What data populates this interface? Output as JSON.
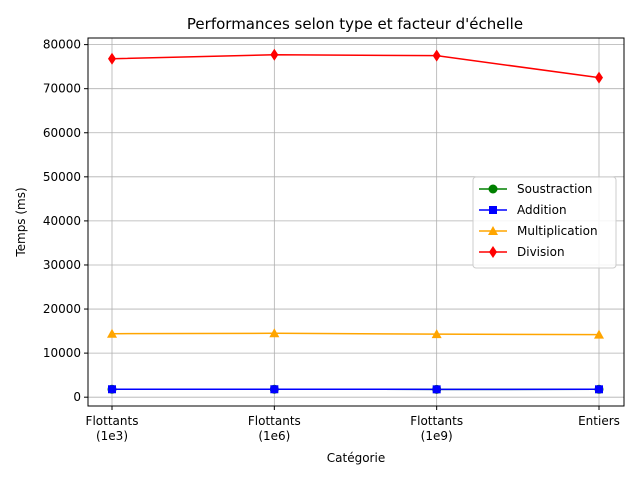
{
  "chart_data": {
    "type": "line",
    "title": "Performances selon type et facteur d'échelle",
    "xlabel": "Catégorie",
    "ylabel": "Temps (ms)",
    "categories": [
      [
        "Flottants",
        "(1e3)"
      ],
      [
        "Flottants",
        "(1e6)"
      ],
      [
        "Flottants",
        "(1e9)"
      ],
      [
        "Entiers"
      ]
    ],
    "ylim": [
      -2000,
      81500
    ],
    "yticks": [
      0,
      10000,
      20000,
      30000,
      40000,
      50000,
      60000,
      70000,
      80000
    ],
    "grid": true,
    "legend_position": "center-right",
    "series": [
      {
        "name": "Soustraction",
        "color": "#008000",
        "marker": "circle",
        "values": [
          1800,
          1800,
          1780,
          1790
        ]
      },
      {
        "name": "Addition",
        "color": "#0000ff",
        "marker": "square",
        "values": [
          1800,
          1800,
          1780,
          1790
        ]
      },
      {
        "name": "Multiplication",
        "color": "#ffa500",
        "marker": "triangle",
        "values": [
          14400,
          14500,
          14300,
          14200
        ]
      },
      {
        "name": "Division",
        "color": "#ff0000",
        "marker": "diamond",
        "values": [
          76800,
          77700,
          77500,
          72500
        ]
      }
    ]
  }
}
